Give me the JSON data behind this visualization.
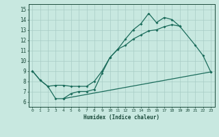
{
  "title": "",
  "xlabel": "Humidex (Indice chaleur)",
  "xlim": [
    -0.5,
    23.5
  ],
  "ylim": [
    5.5,
    15.5
  ],
  "yticks": [
    6,
    7,
    8,
    9,
    10,
    11,
    12,
    13,
    14,
    15
  ],
  "xticks": [
    0,
    1,
    2,
    3,
    4,
    5,
    6,
    7,
    8,
    9,
    10,
    11,
    12,
    13,
    14,
    15,
    16,
    17,
    18,
    19,
    20,
    21,
    22,
    23
  ],
  "background_color": "#c8e8e0",
  "grid_color": "#a8ccc5",
  "line_color": "#1a6b5a",
  "line1_x": [
    0,
    1,
    2,
    3,
    4,
    5,
    6,
    7,
    8,
    9,
    10,
    11,
    12,
    13,
    14,
    15,
    16,
    17,
    18,
    19
  ],
  "line1_y": [
    9.0,
    8.1,
    7.5,
    7.6,
    7.6,
    7.5,
    7.5,
    7.5,
    8.0,
    9.0,
    10.3,
    11.1,
    12.1,
    13.0,
    13.6,
    14.6,
    13.7,
    14.2,
    14.0,
    13.35
  ],
  "line2_x": [
    0,
    1,
    2,
    3,
    4,
    5,
    6,
    7,
    8,
    9,
    10,
    11,
    12,
    13,
    14,
    15,
    16,
    17,
    18,
    19,
    21,
    22,
    23
  ],
  "line2_y": [
    9.0,
    8.1,
    7.5,
    6.3,
    6.3,
    6.8,
    7.0,
    7.0,
    7.2,
    8.8,
    10.3,
    11.1,
    11.5,
    12.1,
    12.5,
    12.9,
    13.0,
    13.3,
    13.5,
    13.35,
    11.5,
    10.5,
    8.9
  ],
  "line3_x": [
    4,
    23
  ],
  "line3_y": [
    6.3,
    8.9
  ]
}
